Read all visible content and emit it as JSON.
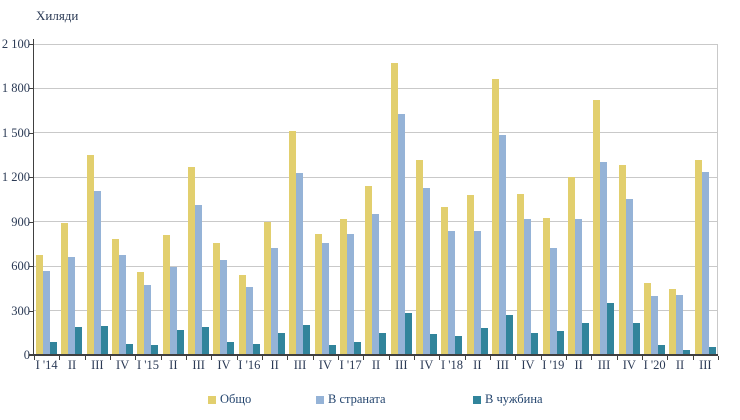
{
  "chart_data": {
    "type": "bar",
    "unit_label": "Хиляди",
    "categories": [
      "I '14",
      "II",
      "III",
      "IV",
      "I '15",
      "II",
      "III",
      "IV",
      "I '16",
      "II",
      "III",
      "IV",
      "I '17",
      "II",
      "III",
      "IV",
      "I '18",
      "II",
      "III",
      "IV",
      "I '19",
      "II",
      "III",
      "IV",
      "I '20",
      "II",
      "III"
    ],
    "series": [
      {
        "name": "Общо",
        "color": "#E2CF6E",
        "values": [
          675,
          890,
          1350,
          780,
          560,
          810,
          1270,
          755,
          540,
          895,
          1510,
          820,
          915,
          1140,
          1975,
          1320,
          1000,
          1080,
          1865,
          1085,
          925,
          1205,
          1720,
          1285,
          485,
          445,
          1320
        ]
      },
      {
        "name": "В страната",
        "color": "#95B3D7",
        "values": [
          565,
          660,
          1110,
          675,
          470,
          595,
          1010,
          640,
          460,
          720,
          1230,
          755,
          815,
          955,
          1625,
          1130,
          835,
          835,
          1485,
          915,
          720,
          915,
          1300,
          1050,
          400,
          405,
          1235
        ]
      },
      {
        "name": "В чужбина",
        "color": "#31849B",
        "values": [
          90,
          190,
          195,
          75,
          65,
          170,
          190,
          90,
          75,
          150,
          200,
          65,
          90,
          150,
          285,
          140,
          130,
          185,
          270,
          150,
          160,
          215,
          350,
          215,
          65,
          35,
          55
        ]
      }
    ],
    "ylim": [
      0,
      2100
    ],
    "yticks": [
      {
        "value": 0,
        "label": "0"
      },
      {
        "value": 300,
        "label": "300"
      },
      {
        "value": 600,
        "label": "600"
      },
      {
        "value": 900,
        "label": "900"
      },
      {
        "value": 1200,
        "label": "1 200"
      },
      {
        "value": 1500,
        "label": "1 500"
      },
      {
        "value": 1800,
        "label": "1 800"
      },
      {
        "value": 2100,
        "label": "2 100"
      }
    ],
    "grid": true,
    "legend_position": "bottom",
    "colors": {
      "gridline": "#c9c9c9",
      "axis": "#404040",
      "tick_text": "#2b3a55",
      "legend_text": "#24456e"
    }
  }
}
